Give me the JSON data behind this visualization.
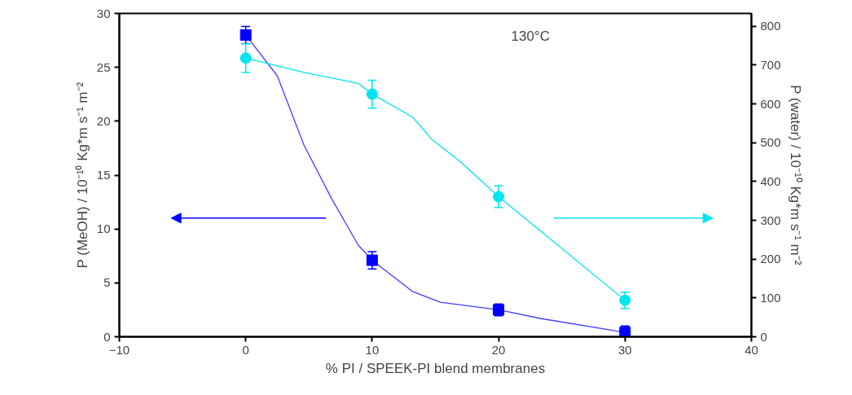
{
  "chart_data": {
    "type": "scatter",
    "xlabel": "% PI / SPEEK-PI blend membranes",
    "ylabel": "P (MeOH) / 10⁻¹⁰ Kg*m s⁻¹ m⁻²",
    "y2label": "P (water) / 10⁻¹⁰ Kg*m s⁻¹ m⁻²",
    "annotations": [
      "130°C"
    ],
    "x": [
      0,
      10,
      20,
      30
    ],
    "series": [
      {
        "type": "line",
        "color": "#4040ff",
        "x": [
          0,
          2.5,
          4.6,
          6.8,
          8.9,
          10,
          13.2,
          15.4,
          20,
          23.3,
          30
        ],
        "values": [
          28,
          24.2,
          17.8,
          12.8,
          8.5,
          7.1,
          4.2,
          3.2,
          2.5,
          1.7,
          0.4
        ]
      },
      {
        "type": "line",
        "color": "#00e5ee",
        "axis": "y2",
        "x": [
          0,
          4.6,
          8.9,
          10,
          13.2,
          14.7,
          16.9,
          20,
          30
        ],
        "values": [
          718,
          681,
          653,
          625,
          566,
          509,
          453,
          361,
          94
        ]
      },
      {
        "color": "#0000ff",
        "marker": "square",
        "values": [
          28,
          7.1,
          2.5,
          0.4
        ],
        "errors": [
          0.8,
          0.8,
          0.55,
          0.6
        ]
      },
      {
        "color": "#00e5ee",
        "marker": "circle",
        "axis": "y2",
        "values": [
          718,
          625,
          361,
          94
        ],
        "errors": [
          37,
          36,
          28,
          21
        ]
      }
    ],
    "xlim": [
      -10,
      40
    ],
    "xticks": [
      -10,
      0,
      10,
      20,
      30,
      40
    ],
    "ylim": [
      0,
      30
    ],
    "yticks": [
      0,
      5,
      10,
      15,
      20,
      25,
      30
    ],
    "y2lim": [
      0,
      833
    ],
    "y2ticks": [
      0,
      100,
      200,
      300,
      400,
      500,
      600,
      700,
      800
    ],
    "grid": false
  }
}
